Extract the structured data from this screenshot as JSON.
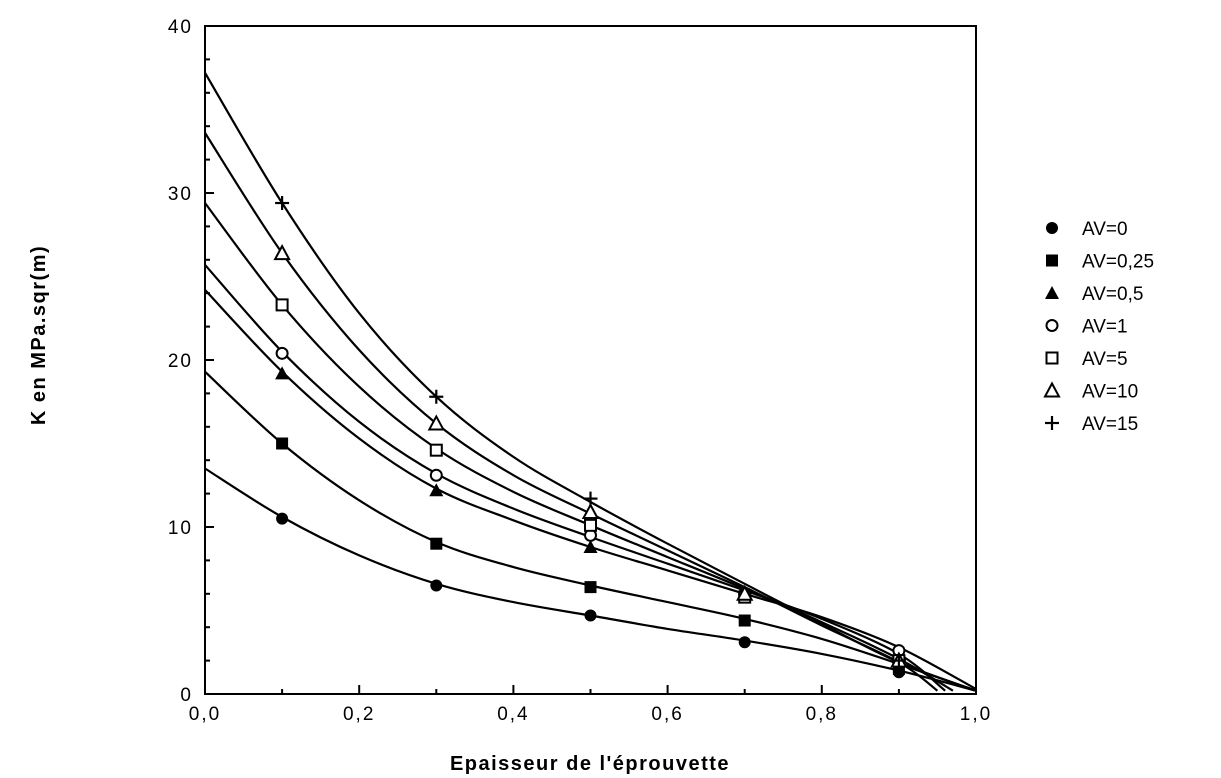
{
  "chart_data": {
    "type": "scatter",
    "title": "",
    "xlabel": "Epaisseur  de  l'éprouvette",
    "ylabel": "K  en  MPa.sqr(m)",
    "xlim": [
      0,
      1
    ],
    "ylim": [
      0,
      40
    ],
    "x_ticks": [
      "0,0",
      "0,2",
      "0,4",
      "0,6",
      "0,8",
      "1,0"
    ],
    "y_ticks": [
      "0",
      "10",
      "20",
      "30",
      "40"
    ],
    "grid": false,
    "legend_position": "right",
    "series": [
      {
        "name": "AV=0",
        "marker": "filled-circle",
        "points": [
          [
            0.1,
            10.5
          ],
          [
            0.3,
            6.5
          ],
          [
            0.5,
            4.7
          ],
          [
            0.7,
            3.1
          ],
          [
            0.9,
            1.3
          ]
        ],
        "curve": [
          [
            0,
            13.5
          ],
          [
            0.1,
            10.6
          ],
          [
            0.2,
            8.3
          ],
          [
            0.3,
            6.6
          ],
          [
            0.4,
            5.5
          ],
          [
            0.5,
            4.7
          ],
          [
            0.6,
            3.9
          ],
          [
            0.7,
            3.2
          ],
          [
            0.8,
            2.4
          ],
          [
            0.9,
            1.4
          ],
          [
            1.0,
            0.2
          ]
        ]
      },
      {
        "name": "AV=0,25",
        "marker": "filled-square",
        "points": [
          [
            0.1,
            15.0
          ],
          [
            0.3,
            9.0
          ],
          [
            0.5,
            6.4
          ],
          [
            0.7,
            4.4
          ],
          [
            0.9,
            1.5
          ]
        ],
        "curve": [
          [
            0,
            19.3
          ],
          [
            0.1,
            15.0
          ],
          [
            0.2,
            11.6
          ],
          [
            0.3,
            9.1
          ],
          [
            0.4,
            7.6
          ],
          [
            0.5,
            6.5
          ],
          [
            0.6,
            5.5
          ],
          [
            0.7,
            4.5
          ],
          [
            0.8,
            3.3
          ],
          [
            0.9,
            1.8
          ],
          [
            1.0,
            0.2
          ]
        ]
      },
      {
        "name": "AV=0,5",
        "marker": "filled-triangle",
        "points": [
          [
            0.1,
            19.2
          ],
          [
            0.3,
            12.2
          ],
          [
            0.5,
            8.8
          ],
          [
            0.7,
            6.0
          ],
          [
            0.9,
            2.2
          ]
        ],
        "curve": [
          [
            0,
            24.2
          ],
          [
            0.1,
            19.3
          ],
          [
            0.2,
            15.3
          ],
          [
            0.3,
            12.3
          ],
          [
            0.4,
            10.4
          ],
          [
            0.5,
            8.8
          ],
          [
            0.6,
            7.4
          ],
          [
            0.7,
            6.0
          ],
          [
            0.8,
            4.6
          ],
          [
            0.9,
            2.8
          ],
          [
            1.0,
            0.3
          ]
        ]
      },
      {
        "name": "AV=1",
        "marker": "open-circle",
        "points": [
          [
            0.1,
            20.4
          ],
          [
            0.3,
            13.1
          ],
          [
            0.5,
            9.5
          ],
          [
            0.7,
            6.0
          ],
          [
            0.9,
            2.6
          ]
        ],
        "curve": [
          [
            0,
            25.7
          ],
          [
            0.1,
            20.5
          ],
          [
            0.2,
            16.3
          ],
          [
            0.3,
            13.2
          ],
          [
            0.4,
            11.1
          ],
          [
            0.5,
            9.4
          ],
          [
            0.6,
            7.8
          ],
          [
            0.7,
            6.2
          ],
          [
            0.8,
            4.5
          ],
          [
            0.9,
            2.4
          ],
          [
            0.96,
            0.2
          ]
        ]
      },
      {
        "name": "AV=5",
        "marker": "open-square",
        "points": [
          [
            0.1,
            23.3
          ],
          [
            0.3,
            14.6
          ],
          [
            0.5,
            10.1
          ],
          [
            0.7,
            5.8
          ],
          [
            0.9,
            2.0
          ]
        ],
        "curve": [
          [
            0,
            29.4
          ],
          [
            0.1,
            23.3
          ],
          [
            0.2,
            18.4
          ],
          [
            0.3,
            14.7
          ],
          [
            0.4,
            12.1
          ],
          [
            0.5,
            10.1
          ],
          [
            0.6,
            8.2
          ],
          [
            0.7,
            6.3
          ],
          [
            0.8,
            4.3
          ],
          [
            0.9,
            2.1
          ],
          [
            0.97,
            0.2
          ]
        ]
      },
      {
        "name": "AV=10",
        "marker": "open-triangle",
        "points": [
          [
            0.1,
            26.4
          ],
          [
            0.3,
            16.2
          ],
          [
            0.5,
            10.9
          ],
          [
            0.7,
            6.0
          ],
          [
            0.9,
            2.0
          ]
        ],
        "curve": [
          [
            0,
            33.6
          ],
          [
            0.1,
            26.4
          ],
          [
            0.2,
            20.6
          ],
          [
            0.3,
            16.2
          ],
          [
            0.4,
            13.1
          ],
          [
            0.5,
            10.8
          ],
          [
            0.6,
            8.6
          ],
          [
            0.7,
            6.4
          ],
          [
            0.8,
            4.1
          ],
          [
            0.9,
            1.9
          ],
          [
            0.95,
            0.2
          ]
        ]
      },
      {
        "name": "AV=15",
        "marker": "plus",
        "points": [
          [
            0.1,
            29.4
          ],
          [
            0.3,
            17.8
          ],
          [
            0.5,
            11.7
          ],
          [
            0.9,
            2.0
          ]
        ],
        "curve": [
          [
            0,
            37.2
          ],
          [
            0.1,
            29.4
          ],
          [
            0.2,
            22.8
          ],
          [
            0.3,
            17.8
          ],
          [
            0.4,
            14.2
          ],
          [
            0.5,
            11.5
          ],
          [
            0.6,
            9.0
          ],
          [
            0.7,
            6.6
          ],
          [
            0.8,
            4.2
          ],
          [
            0.9,
            1.9
          ],
          [
            1.0,
            0.2
          ]
        ]
      }
    ]
  }
}
